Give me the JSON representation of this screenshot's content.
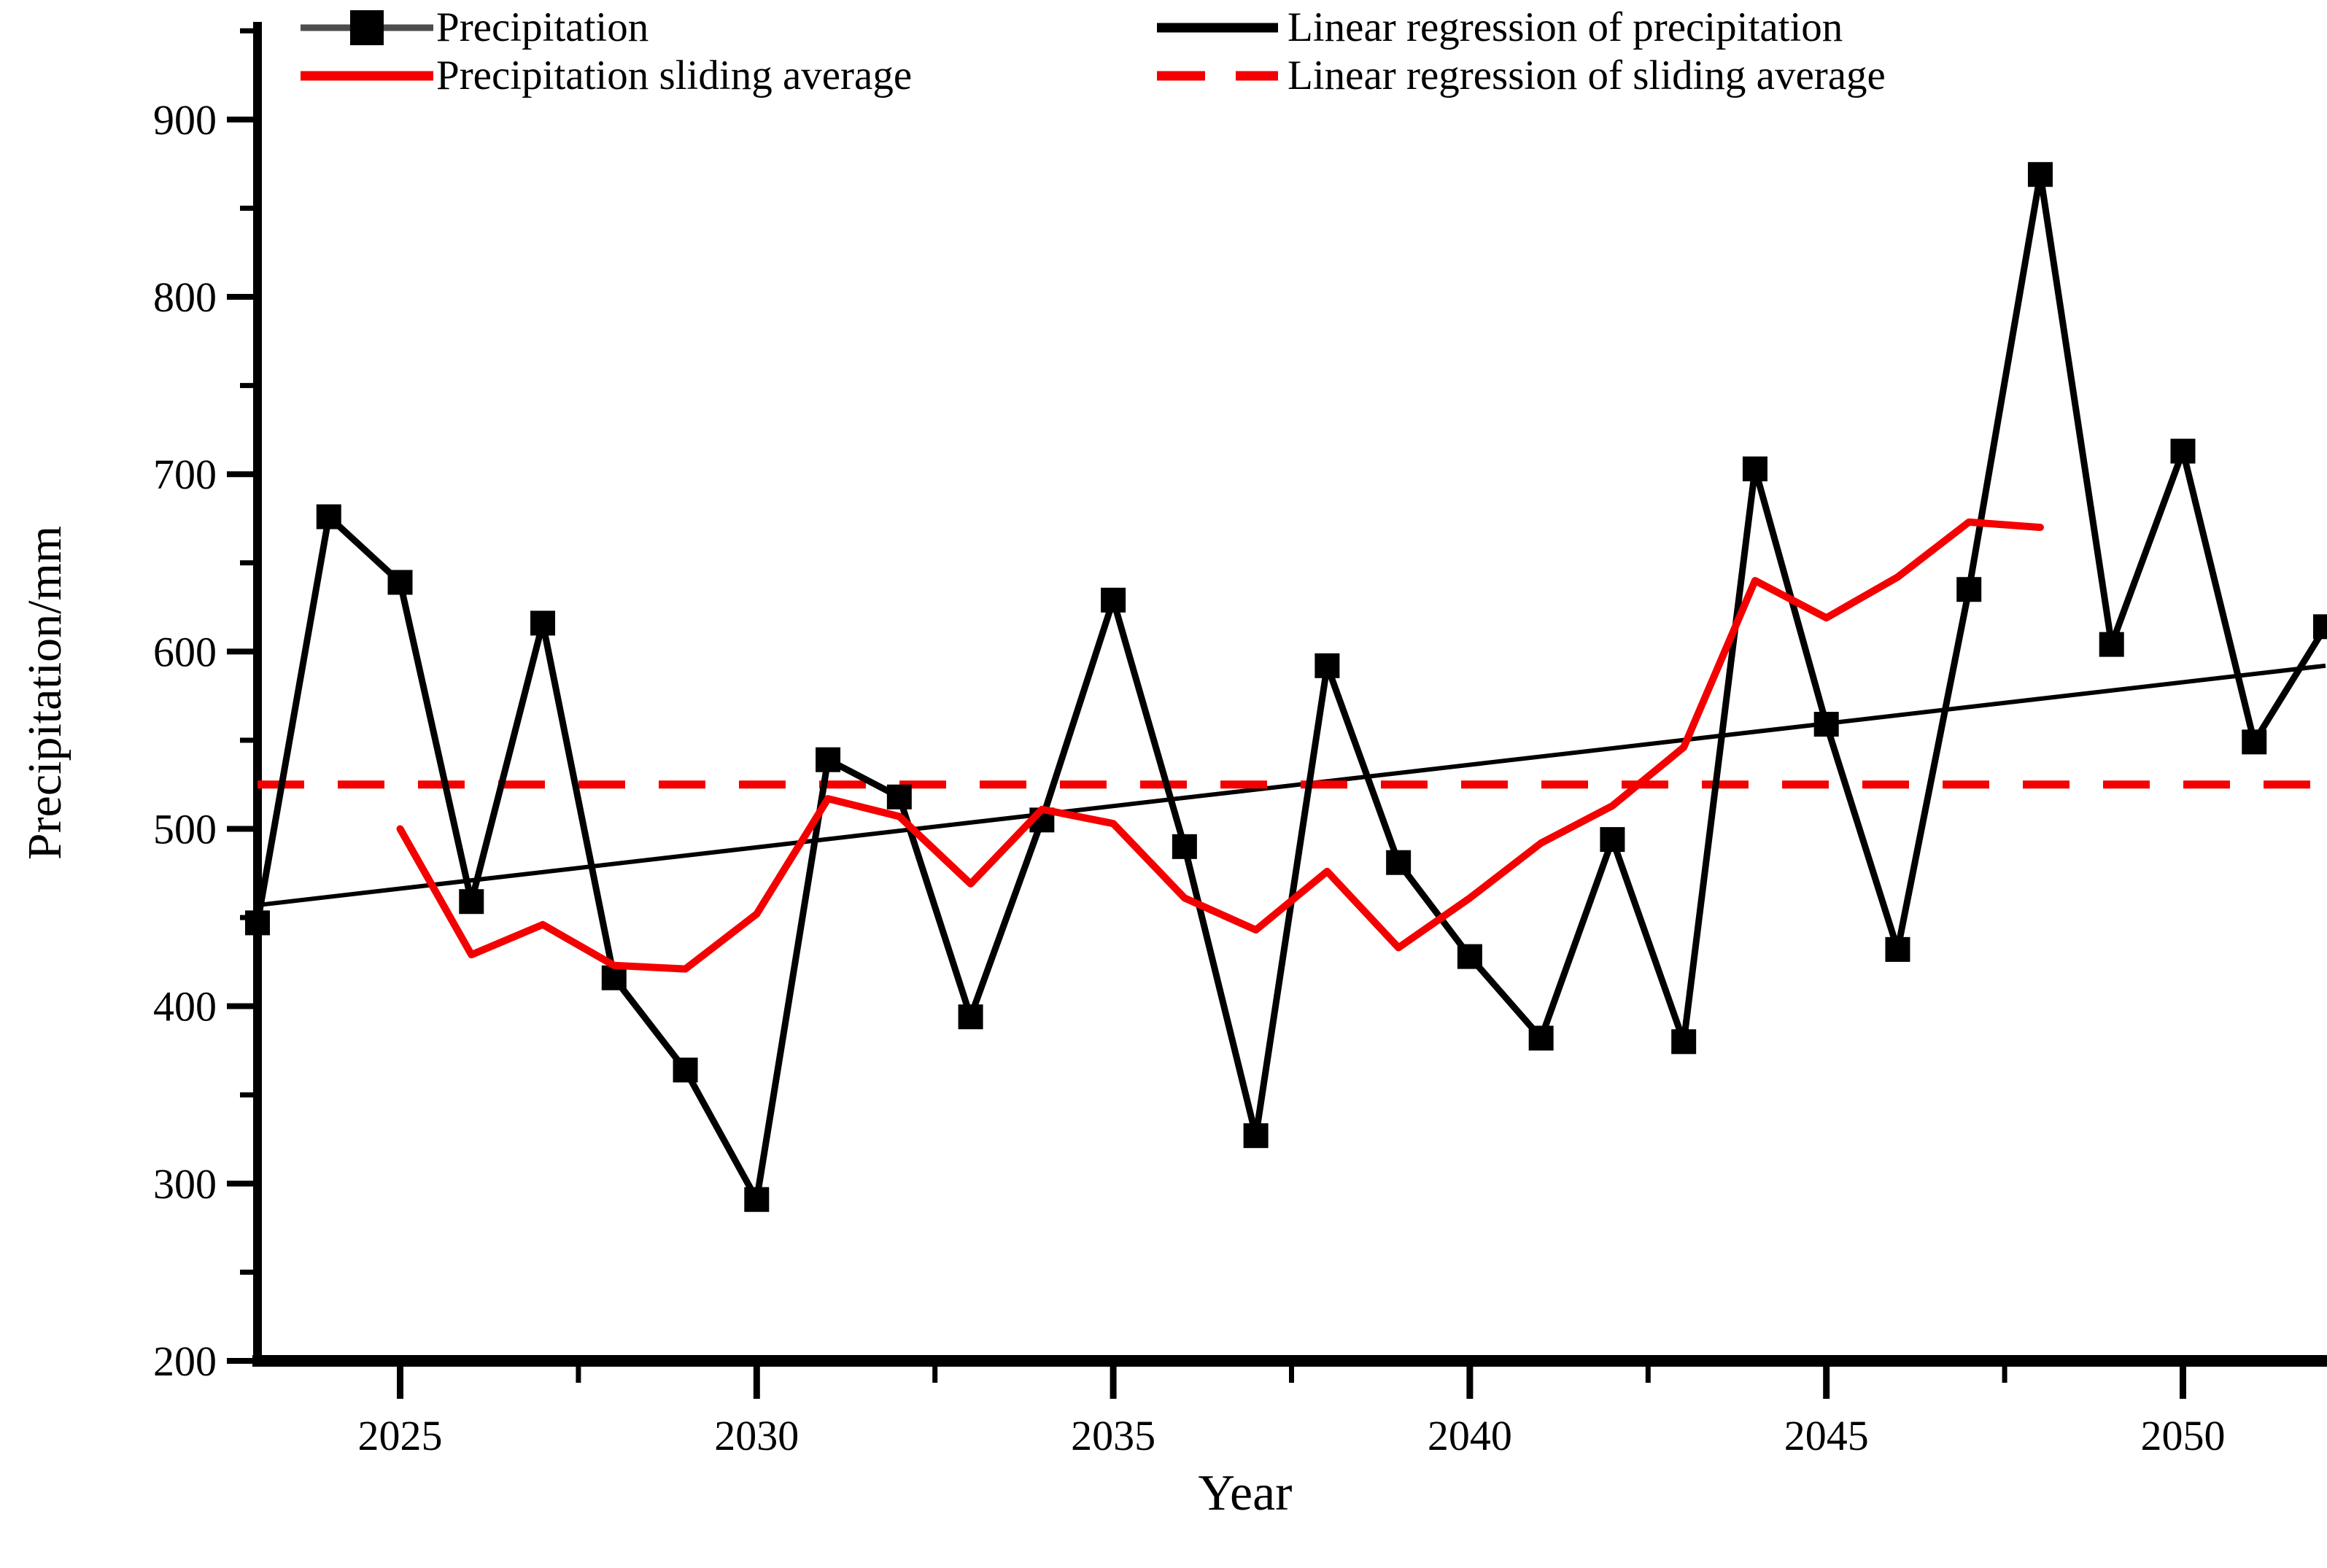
{
  "figure": {
    "background": "#ffffff"
  },
  "legend": {
    "items": [
      {
        "label": "Precipitation",
        "swatch": "line-with-square-marker",
        "color": "#000000",
        "line_color": "#4d4d4d"
      },
      {
        "label": "Linear regression of precipitation",
        "swatch": "solid-line",
        "color": "#000000"
      },
      {
        "label": "Precipitation sliding average",
        "swatch": "solid-line",
        "color": "#f40000"
      },
      {
        "label": "Linear regression of sliding average",
        "swatch": "dashed-line",
        "color": "#f40000"
      }
    ]
  },
  "axes": {
    "x_label": "Year",
    "y_label": "Precipitation/mm"
  },
  "chart_data": {
    "type": "line",
    "title": "",
    "xlabel": "Year",
    "ylabel": "Precipitation/mm",
    "xlim": [
      2023,
      2052
    ],
    "ylim": [
      200,
      953
    ],
    "grid": false,
    "legend_position": "top",
    "x_major_ticks": [
      2025,
      2030,
      2035,
      2040,
      2045,
      2050
    ],
    "x_minor_ticks": [
      2027.5,
      2032.5,
      2037.5,
      2042.5,
      2047.5
    ],
    "y_major_ticks": [
      200,
      300,
      400,
      500,
      600,
      700,
      800,
      900
    ],
    "y_minor_ticks": [
      250,
      350,
      450,
      550,
      650,
      750,
      850,
      950
    ],
    "series": [
      {
        "name": "Precipitation",
        "style": "solid",
        "marker": "square",
        "color": "#000000",
        "x": [
          2023,
          2024,
          2025,
          2026,
          2027,
          2028,
          2029,
          2030,
          2031,
          2032,
          2033,
          2034,
          2035,
          2036,
          2037,
          2038,
          2039,
          2040,
          2041,
          2042,
          2043,
          2044,
          2045,
          2046,
          2047,
          2048,
          2049,
          2050,
          2051,
          2052
        ],
        "values": [
          447,
          676,
          639,
          459,
          616,
          416,
          364,
          291,
          539,
          518,
          394,
          505,
          629,
          490,
          327,
          592,
          481,
          428,
          382,
          494,
          380,
          703,
          559,
          432,
          635,
          869,
          604,
          713,
          549,
          614
        ]
      },
      {
        "name": "Precipitation sliding average",
        "style": "solid",
        "marker": "none",
        "color": "#f40000",
        "x": [
          2025,
          2026,
          2027,
          2028,
          2029,
          2030,
          2031,
          2032,
          2033,
          2034,
          2035,
          2036,
          2037,
          2038,
          2039,
          2040,
          2041,
          2042,
          2043,
          2044,
          2045,
          2046,
          2047,
          2048
        ],
        "values": [
          500,
          429,
          446,
          423,
          421,
          452,
          517,
          507,
          469,
          511,
          503,
          461,
          443,
          476,
          433,
          461,
          492,
          513,
          546,
          640,
          619,
          642,
          673,
          670
        ]
      },
      {
        "name": "Linear regression of precipitation",
        "style": "solid",
        "marker": "none",
        "color": "#000000",
        "x": [
          2023,
          2052
        ],
        "values": [
          457,
          592
        ]
      },
      {
        "name": "Linear regression of sliding average",
        "style": "dashed",
        "marker": "none",
        "color": "#f40000",
        "x": [
          2023,
          2052
        ],
        "values": [
          525,
          525
        ]
      }
    ]
  }
}
